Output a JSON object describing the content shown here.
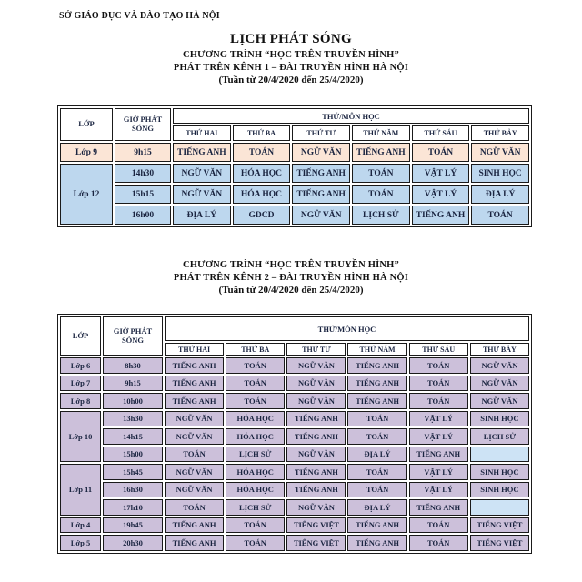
{
  "header": {
    "org": "SỞ GIÁO DỤC VÀ ĐÀO TẠO HÀ NỘI",
    "title": "LỊCH PHÁT SÓNG"
  },
  "section1": {
    "line1": "CHƯƠNG TRÌNH “HỌC TRÊN TRUYỀN HÌNH”",
    "line2": "PHÁT TRÊN KÊNH 1 – ĐÀI TRUYỀN HÌNH HÀ NỘI",
    "week": "(Tuần từ 20/4/2020 đến 25/4/2020)"
  },
  "section2": {
    "line1": "CHƯƠNG TRÌNH “HỌC TRÊN TRUYỀN HÌNH”",
    "line2": "PHÁT TRÊN KÊNH 2 – ĐÀI TRUYỀN HÌNH HÀ NỘI",
    "week": "(Tuần từ 20/4/2020 đến 25/4/2020)"
  },
  "table_headers": {
    "col_class": "LỚP",
    "col_time": "GIỜ PHÁT SÓNG",
    "col_day_subject": "THỨ/MÔN HỌC",
    "days": [
      "THỨ HAI",
      "THỨ BA",
      "THỨ TƯ",
      "THỨ NĂM",
      "THỨ SÁU",
      "THỨ BẢY"
    ]
  },
  "schedule_channel1": {
    "groups": [
      {
        "class_label": "Lớp 9",
        "color": "peach",
        "rows": [
          {
            "time": "9h15",
            "subjects": [
              "TIẾNG ANH",
              "TOÁN",
              "NGỮ VĂN",
              "TIẾNG ANH",
              "TOÁN",
              "NGỮ VĂN"
            ]
          }
        ]
      },
      {
        "class_label": "Lớp 12",
        "color": "blue",
        "rows": [
          {
            "time": "14h30",
            "subjects": [
              "NGỮ VĂN",
              "HÓA HỌC",
              "TIẾNG ANH",
              "TOÁN",
              "VẬT LÝ",
              "SINH HỌC"
            ]
          },
          {
            "time": "15h15",
            "subjects": [
              "NGỮ VĂN",
              "HÓA HỌC",
              "TIẾNG ANH",
              "TOÁN",
              "VẬT LÝ",
              "ĐỊA LÝ"
            ]
          },
          {
            "time": "16h00",
            "subjects": [
              "ĐỊA LÝ",
              "GDCD",
              "NGỮ VĂN",
              "LỊCH SỬ",
              "TIẾNG ANH",
              "TOÁN"
            ]
          }
        ]
      }
    ]
  },
  "schedule_channel2": {
    "groups": [
      {
        "class_label": "Lớp 6",
        "color": "purple",
        "rows": [
          {
            "time": "8h30",
            "subjects": [
              "TIẾNG ANH",
              "TOÁN",
              "NGỮ VĂN",
              "TIẾNG ANH",
              "TOÁN",
              "NGỮ VĂN"
            ]
          }
        ]
      },
      {
        "class_label": "Lớp 7",
        "color": "purple",
        "rows": [
          {
            "time": "9h15",
            "subjects": [
              "TIẾNG ANH",
              "TOÁN",
              "NGỮ VĂN",
              "TIẾNG ANH",
              "TOÁN",
              "NGỮ VĂN"
            ]
          }
        ]
      },
      {
        "class_label": "Lớp 8",
        "color": "purple",
        "rows": [
          {
            "time": "10h00",
            "subjects": [
              "TIẾNG ANH",
              "TOÁN",
              "NGỮ VĂN",
              "TIẾNG ANH",
              "TOÁN",
              "NGỮ VĂN"
            ]
          }
        ]
      },
      {
        "class_label": "Lớp 10",
        "color": "purple",
        "rows": [
          {
            "time": "13h30",
            "subjects": [
              "NGỮ VĂN",
              "HÓA HỌC",
              "TIẾNG ANH",
              "TOÁN",
              "VẬT LÝ",
              "SINH HỌC"
            ]
          },
          {
            "time": "14h15",
            "subjects": [
              "NGỮ VĂN",
              "HÓA HỌC",
              "TIẾNG ANH",
              "TOÁN",
              "VẬT LÝ",
              "LỊCH SỬ"
            ]
          },
          {
            "time": "15h00",
            "subjects": [
              "TOÁN",
              "LỊCH SỬ",
              "NGỮ VĂN",
              "ĐỊA LÝ",
              "TIẾNG ANH",
              ""
            ]
          }
        ]
      },
      {
        "class_label": "Lớp 11",
        "color": "purple",
        "rows": [
          {
            "time": "15h45",
            "subjects": [
              "NGỮ VĂN",
              "HÓA HỌC",
              "TIẾNG ANH",
              "TOÁN",
              "VẬT LÝ",
              "SINH HỌC"
            ]
          },
          {
            "time": "16h30",
            "subjects": [
              "NGỮ VĂN",
              "HÓA HỌC",
              "TIẾNG ANH",
              "TOÁN",
              "VẬT LÝ",
              "SINH HỌC"
            ]
          },
          {
            "time": "17h10",
            "subjects": [
              "TOÁN",
              "LỊCH SỬ",
              "NGỮ VĂN",
              "ĐỊA LÝ",
              "TIẾNG ANH",
              ""
            ]
          }
        ]
      },
      {
        "class_label": "Lớp 4",
        "color": "purple",
        "rows": [
          {
            "time": "19h45",
            "subjects": [
              "TIẾNG ANH",
              "TOÁN",
              "TIẾNG VIỆT",
              "TIẾNG ANH",
              "TOÁN",
              "TIẾNG VIỆT"
            ]
          }
        ]
      },
      {
        "class_label": "Lớp 5",
        "color": "purple",
        "rows": [
          {
            "time": "20h30",
            "subjects": [
              "TIẾNG ANH",
              "TOÁN",
              "TIẾNG VIỆT",
              "TIẾNG ANH",
              "TOÁN",
              "TIẾNG VIỆT"
            ]
          }
        ]
      }
    ]
  },
  "colors": {
    "row_peach": "#FBE5D6",
    "row_blue": "#BDD7EE",
    "row_purple": "#CCC0DA",
    "empty_cell_blue": "#CDE3F5",
    "border": "#1a1a1a",
    "table_text": "#1A2440"
  }
}
